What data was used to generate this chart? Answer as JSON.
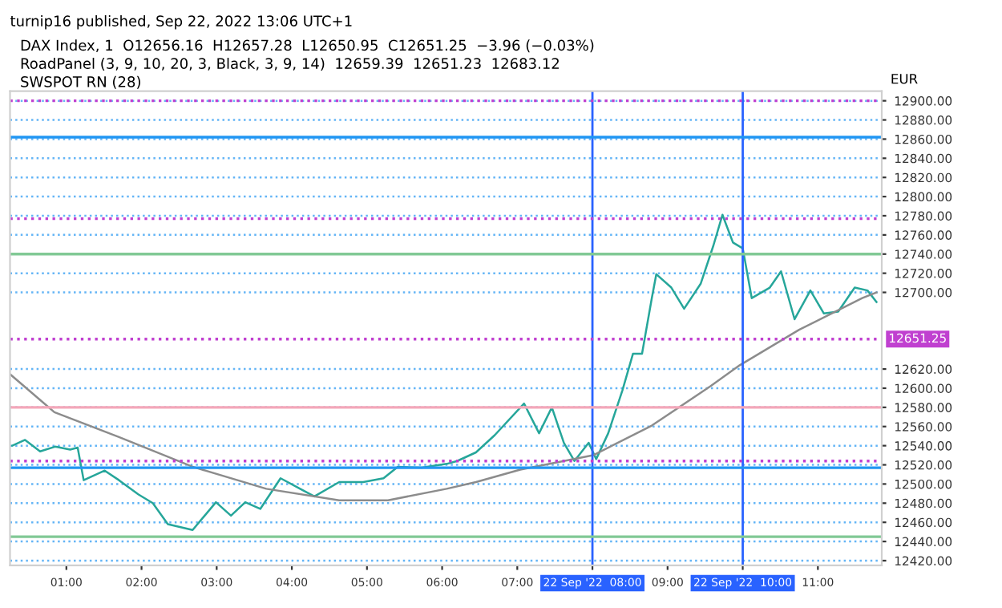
{
  "chart_data": {
    "type": "line",
    "title": "turnip16 published, Sep 22, 2022 13:06 UTC+1",
    "subtitle": "DAX Index, 1  O12656.16  H12657.28  L12650.95  C12651.25  −3.96 (−0.03%)",
    "annotations": [
      "RoadPanel (3, 9, 10, 20, 3, Black, 3, 9, 14)  12659.39  12651.23  12683.12",
      "SWSPOT RN (28)"
    ],
    "ylabel": "EUR",
    "xlim": [
      0.25,
      11.85
    ],
    "xticks": [
      {
        "value": 1,
        "label": "01:00"
      },
      {
        "value": 2,
        "label": "02:00"
      },
      {
        "value": 3,
        "label": "03:00"
      },
      {
        "value": 4,
        "label": "04:00"
      },
      {
        "value": 5,
        "label": "05:00"
      },
      {
        "value": 6,
        "label": "06:00"
      },
      {
        "value": 7,
        "label": "07:00"
      },
      {
        "value": 8,
        "label": "22 Sep '22  08:00"
      },
      {
        "value": 9,
        "label": "09:00"
      },
      {
        "value": 10,
        "label": "22 Sep '22  10:00"
      },
      {
        "value": 11,
        "label": "11:00"
      }
    ],
    "ylim": [
      12415,
      12910
    ],
    "yticks": [
      {
        "value": 12420,
        "label": "12420.00"
      },
      {
        "value": 12440,
        "label": "12440.00"
      },
      {
        "value": 12460,
        "label": "12460.00"
      },
      {
        "value": 12480,
        "label": "12480.00"
      },
      {
        "value": 12500,
        "label": "12500.00"
      },
      {
        "value": 12520,
        "label": "12520.00"
      },
      {
        "value": 12540,
        "label": "12540.00"
      },
      {
        "value": 12560,
        "label": "12560.00"
      },
      {
        "value": 12580,
        "label": "12580.00"
      },
      {
        "value": 12600,
        "label": "12600.00"
      },
      {
        "value": 12620,
        "label": "12620.00"
      },
      {
        "value": 12700,
        "label": "12700.00"
      },
      {
        "value": 12720,
        "label": "12720.00"
      },
      {
        "value": 12740,
        "label": "12740.00"
      },
      {
        "value": 12760,
        "label": "12760.00"
      },
      {
        "value": 12780,
        "label": "12780.00"
      },
      {
        "value": 12800,
        "label": "12800.00"
      },
      {
        "value": 12820,
        "label": "12820.00"
      },
      {
        "value": 12840,
        "label": "12840.00"
      },
      {
        "value": 12860,
        "label": "12860.00"
      },
      {
        "value": 12880,
        "label": "12880.00"
      },
      {
        "value": 12900,
        "label": "12900.00"
      }
    ],
    "grid": "y",
    "legend": false,
    "series": [
      {
        "color": "#26a69a",
        "x": [
          0.28,
          0.45,
          0.65,
          0.85,
          1.05,
          1.15,
          1.23,
          1.51,
          1.7,
          1.96,
          2.15,
          2.35,
          2.68,
          2.99,
          3.19,
          3.38,
          3.58,
          3.85,
          4.11,
          4.3,
          4.63,
          4.95,
          5.22,
          5.41,
          5.73,
          6.06,
          6.2,
          6.45,
          6.7,
          7.09,
          7.29,
          7.46,
          7.62,
          7.76,
          7.95,
          8.05,
          8.21,
          8.4,
          8.54,
          8.66,
          8.79,
          8.85,
          9.05,
          9.22,
          9.44,
          9.61,
          9.73,
          9.87,
          10.0,
          10.12,
          10.36,
          10.51,
          10.69,
          10.9,
          11.08,
          11.27,
          11.49,
          11.66,
          11.78
        ],
        "values": [
          12540,
          12546,
          12534,
          12539,
          12536,
          12538,
          12504,
          12514,
          12504,
          12489,
          12480,
          12458,
          12452,
          12481,
          12467,
          12481,
          12474,
          12506,
          12495,
          12487,
          12502,
          12502,
          12506,
          12518,
          12517,
          12521,
          12524,
          12533,
          12551,
          12584,
          12553,
          12580,
          12543,
          12524,
          12543,
          12526,
          12553,
          12598,
          12636,
          12636,
          12694,
          12719,
          12705,
          12683,
          12709,
          12749,
          12781,
          12752,
          12746,
          12694,
          12705,
          12722,
          12672,
          12702,
          12678,
          12680,
          12705,
          12702,
          12690
        ]
      },
      {
        "color": "#8c8c8c",
        "x": [
          0.26,
          0.84,
          1.7,
          2.68,
          3.66,
          4.63,
          5.28,
          6.06,
          6.45,
          7.04,
          8.01,
          8.79,
          9.57,
          9.96,
          10.75,
          11.59,
          11.78
        ],
        "values": [
          12614,
          12575,
          12549,
          12518,
          12495,
          12483,
          12483,
          12495,
          12502,
          12515,
          12530,
          12561,
          12602,
          12624,
          12661,
          12694,
          12700
        ]
      }
    ],
    "ref_lines": [
      {
        "axis": "x",
        "value": 8,
        "color": "#2962ff",
        "line_style": "solid"
      },
      {
        "axis": "x",
        "value": 10,
        "color": "#2962ff",
        "line_style": "solid"
      },
      {
        "axis": "y",
        "value": 12862,
        "color": "#2196f3",
        "line_style": "solid"
      },
      {
        "axis": "y",
        "value": 12517,
        "color": "#2196f3",
        "line_style": "solid"
      },
      {
        "axis": "y",
        "value": 12740,
        "color": "#81c995",
        "line_style": "solid"
      },
      {
        "axis": "y",
        "value": 12445,
        "color": "#81c995",
        "line_style": "solid"
      },
      {
        "axis": "y",
        "value": 12580,
        "color": "#f4a7b9",
        "line_style": "solid"
      },
      {
        "axis": "y",
        "value": 12900,
        "color": "#c040d0",
        "line_style": "dotted"
      },
      {
        "axis": "y",
        "value": 12777,
        "color": "#c040d0",
        "line_style": "dotted"
      },
      {
        "axis": "y",
        "value": 12524,
        "color": "#c040d0",
        "line_style": "dotted"
      },
      {
        "axis": "y",
        "value": 12651.25,
        "color": "#c040d0",
        "line_style": "dotted",
        "label": "12651.25"
      }
    ]
  }
}
